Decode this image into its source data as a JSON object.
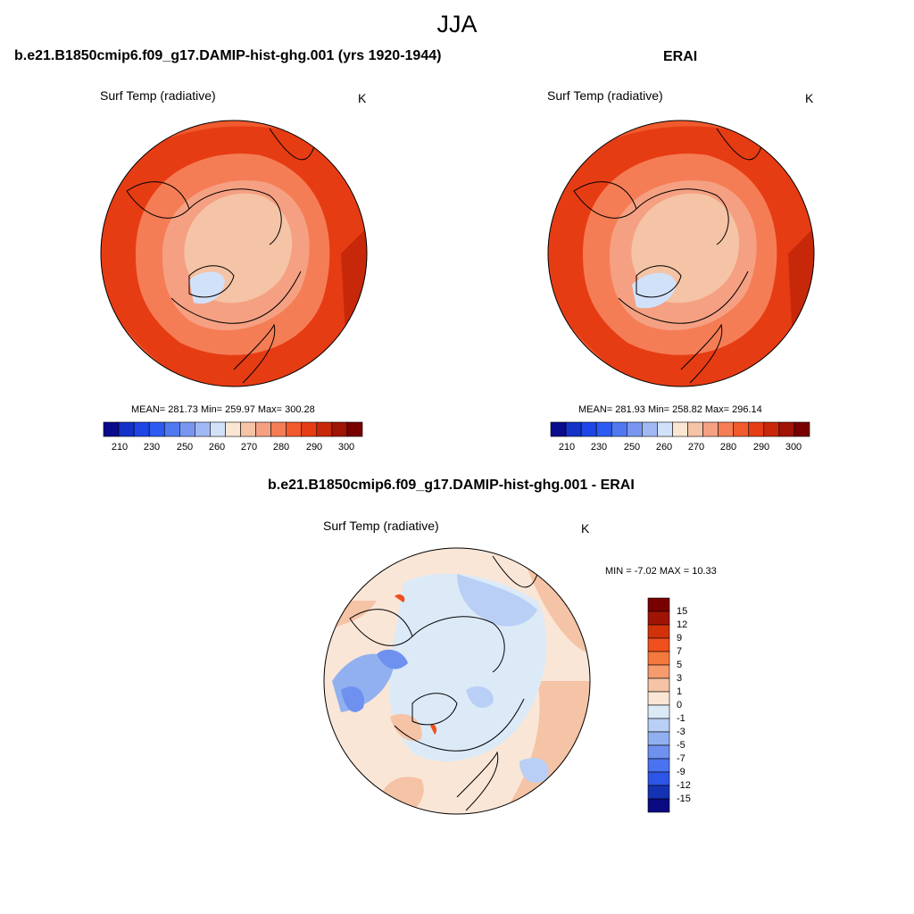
{
  "figure": {
    "season": "JJA"
  },
  "panel_model": {
    "title": "b.e21.B1850cmip6.f09_g17.DAMIP-hist-ghg.001 (yrs 1920-1944)",
    "variable": "Surf Temp (radiative)",
    "units": "K",
    "stats": "MEAN= 281.73  Min= 259.97  Max= 300.28"
  },
  "panel_obs": {
    "title": "ERAI",
    "variable": "Surf Temp (radiative)",
    "units": "K",
    "stats": "MEAN= 281.93  Min= 258.82  Max= 296.14"
  },
  "panel_diff": {
    "title": "b.e21.B1850cmip6.f09_g17.DAMIP-hist-ghg.001 - ERAI",
    "variable": "Surf Temp (radiative)",
    "units": "K",
    "stats": "MIN =  -7.02 MAX =  10.33"
  },
  "colorbar_abs": {
    "tick_labels": [
      "210",
      "230",
      "250",
      "260",
      "270",
      "280",
      "290",
      "300"
    ],
    "colors": [
      "#0a0a8c",
      "#1431c8",
      "#1e46e6",
      "#2d5af0",
      "#5078f0",
      "#7896f0",
      "#a0b9f5",
      "#d2e1fa",
      "#fae6d2",
      "#f5c3a5",
      "#f5a082",
      "#f57d55",
      "#f05a2d",
      "#e63c14",
      "#c8280a",
      "#a01405",
      "#780000"
    ]
  },
  "colorbar_diff": {
    "tick_labels": [
      "15",
      "12",
      "9",
      "7",
      "5",
      "3",
      "1",
      "0",
      "-1",
      "-3",
      "-5",
      "-7",
      "-9",
      "-12",
      "-15"
    ],
    "colors": [
      "#780000",
      "#a01405",
      "#d2320a",
      "#f0501e",
      "#f5783c",
      "#f59b6e",
      "#f5c3a5",
      "#fae6d7",
      "#dceaf8",
      "#b9cff5",
      "#91b0f0",
      "#6e91f0",
      "#4b73f0",
      "#2d55e6",
      "#1432b4",
      "#0a0a82"
    ]
  },
  "chart_data": {
    "type": "heatmap",
    "description_fields": {
      "projection": "north polar stereographic",
      "model_mean": 281.73,
      "model_min": 259.97,
      "model_max": 300.28,
      "obs_mean": 281.93,
      "obs_min": 258.82,
      "obs_max": 296.14,
      "diff_min": -7.02,
      "diff_max": 10.33,
      "abs_levels": [
        210,
        230,
        250,
        260,
        270,
        280,
        290,
        300
      ],
      "diff_levels": [
        15,
        12,
        9,
        7,
        5,
        3,
        1,
        0,
        -1,
        -3,
        -5,
        -7,
        -9,
        -12,
        -15
      ]
    }
  }
}
